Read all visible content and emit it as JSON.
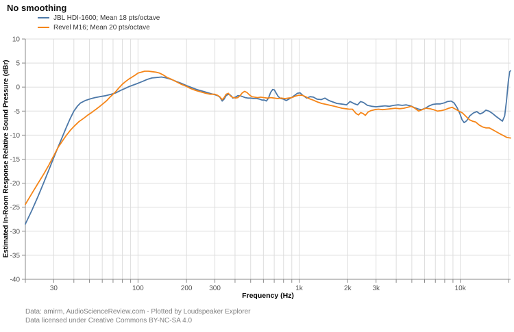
{
  "footer": {
    "line1": "Data: amirm, AudioScienceReview.com - Plotted by Loudspeaker Explorer",
    "line2": "Data licensed under Creative Commons BY-NC-SA 4.0"
  },
  "chart_data": {
    "type": "line",
    "title": "No smoothing",
    "xlabel": "Frequency (Hz)",
    "ylabel": "Estimated In-Room Response Relative Sound Pressure (dBr)",
    "x_scale": "log",
    "xlim": [
      20,
      20500
    ],
    "ylim": [
      -40,
      10
    ],
    "grid": true,
    "legend_position": "top-left",
    "grid_color": "#dddddd",
    "axis_color": "#888888",
    "tick_label_color": "#545454",
    "y_ticks": [
      10,
      5,
      0,
      -5,
      -10,
      -15,
      -20,
      -25,
      -30,
      -35,
      -40
    ],
    "x_gridlines": [
      20,
      30,
      40,
      50,
      60,
      70,
      80,
      90,
      100,
      200,
      300,
      400,
      500,
      600,
      700,
      800,
      900,
      1000,
      2000,
      3000,
      4000,
      5000,
      6000,
      7000,
      8000,
      9000,
      10000,
      20000
    ],
    "x_tick_labels": [
      {
        "value": 30,
        "label": "30"
      },
      {
        "value": 100,
        "label": "100"
      },
      {
        "value": 200,
        "label": "200"
      },
      {
        "value": 300,
        "label": "300"
      },
      {
        "value": 1000,
        "label": "1k"
      },
      {
        "value": 2000,
        "label": "2k"
      },
      {
        "value": 3000,
        "label": "3k"
      },
      {
        "value": 10000,
        "label": "10k"
      }
    ],
    "series": [
      {
        "name": "JBL HDI-1600; Mean 18 pts/octave",
        "color": "#4c78a8",
        "points": [
          [
            20,
            -28.5
          ],
          [
            22,
            -25.6
          ],
          [
            24,
            -22.7
          ],
          [
            26,
            -19.9
          ],
          [
            28,
            -17.2
          ],
          [
            30,
            -14.7
          ],
          [
            32,
            -12.4
          ],
          [
            34,
            -10.3
          ],
          [
            36,
            -8.3
          ],
          [
            38,
            -6.5
          ],
          [
            40,
            -5.0
          ],
          [
            42,
            -4.0
          ],
          [
            44,
            -3.3
          ],
          [
            47,
            -2.8
          ],
          [
            50,
            -2.5
          ],
          [
            54,
            -2.2
          ],
          [
            58,
            -2.0
          ],
          [
            63,
            -1.8
          ],
          [
            68,
            -1.5
          ],
          [
            73,
            -1.2
          ],
          [
            78,
            -0.7
          ],
          [
            83,
            -0.3
          ],
          [
            88,
            0.1
          ],
          [
            93,
            0.4
          ],
          [
            100,
            0.8
          ],
          [
            107,
            1.2
          ],
          [
            114,
            1.6
          ],
          [
            122,
            1.9
          ],
          [
            131,
            2.0
          ],
          [
            140,
            2.1
          ],
          [
            150,
            1.9
          ],
          [
            161,
            1.6
          ],
          [
            172,
            1.2
          ],
          [
            185,
            0.8
          ],
          [
            200,
            0.3
          ],
          [
            215,
            -0.1
          ],
          [
            231,
            -0.5
          ],
          [
            248,
            -0.8
          ],
          [
            266,
            -1.1
          ],
          [
            285,
            -1.4
          ],
          [
            300,
            -1.6
          ],
          [
            312,
            -1.8
          ],
          [
            322,
            -2.1
          ],
          [
            333,
            -2.9
          ],
          [
            342,
            -2.5
          ],
          [
            352,
            -1.8
          ],
          [
            363,
            -1.5
          ],
          [
            375,
            -1.7
          ],
          [
            388,
            -2.3
          ],
          [
            402,
            -2.1
          ],
          [
            416,
            -1.8
          ],
          [
            430,
            -1.8
          ],
          [
            446,
            -2.0
          ],
          [
            463,
            -2.2
          ],
          [
            481,
            -2.3
          ],
          [
            500,
            -2.3
          ],
          [
            522,
            -2.4
          ],
          [
            545,
            -2.4
          ],
          [
            567,
            -2.5
          ],
          [
            588,
            -2.7
          ],
          [
            608,
            -2.7
          ],
          [
            626,
            -2.9
          ],
          [
            645,
            -2.3
          ],
          [
            665,
            -1.1
          ],
          [
            685,
            -0.5
          ],
          [
            702,
            -0.6
          ],
          [
            718,
            -1.2
          ],
          [
            742,
            -2.0
          ],
          [
            770,
            -2.4
          ],
          [
            800,
            -2.5
          ],
          [
            832,
            -2.8
          ],
          [
            862,
            -2.5
          ],
          [
            905,
            -2.1
          ],
          [
            940,
            -1.7
          ],
          [
            975,
            -1.3
          ],
          [
            1012,
            -1.2
          ],
          [
            1060,
            -1.8
          ],
          [
            1115,
            -2.3
          ],
          [
            1170,
            -2.0
          ],
          [
            1225,
            -2.1
          ],
          [
            1290,
            -2.5
          ],
          [
            1370,
            -2.6
          ],
          [
            1445,
            -2.3
          ],
          [
            1530,
            -2.8
          ],
          [
            1620,
            -3.1
          ],
          [
            1715,
            -3.4
          ],
          [
            1810,
            -3.5
          ],
          [
            1900,
            -3.6
          ],
          [
            1965,
            -3.7
          ],
          [
            2070,
            -3.0
          ],
          [
            2180,
            -3.4
          ],
          [
            2300,
            -3.7
          ],
          [
            2405,
            -3.0
          ],
          [
            2505,
            -3.2
          ],
          [
            2650,
            -3.8
          ],
          [
            2820,
            -4.0
          ],
          [
            3000,
            -4.1
          ],
          [
            3200,
            -4.0
          ],
          [
            3410,
            -3.9
          ],
          [
            3630,
            -4.0
          ],
          [
            3860,
            -3.8
          ],
          [
            4110,
            -3.7
          ],
          [
            4360,
            -3.8
          ],
          [
            4620,
            -3.7
          ],
          [
            4910,
            -3.9
          ],
          [
            5210,
            -4.3
          ],
          [
            5520,
            -4.6
          ],
          [
            5760,
            -4.7
          ],
          [
            6060,
            -4.4
          ],
          [
            6410,
            -3.9
          ],
          [
            6760,
            -3.6
          ],
          [
            7120,
            -3.5
          ],
          [
            7510,
            -3.5
          ],
          [
            7920,
            -3.3
          ],
          [
            8330,
            -3.0
          ],
          [
            8760,
            -2.9
          ],
          [
            9150,
            -3.3
          ],
          [
            9550,
            -4.3
          ],
          [
            9950,
            -5.6
          ],
          [
            10250,
            -6.8
          ],
          [
            10550,
            -7.4
          ],
          [
            10950,
            -7.0
          ],
          [
            11450,
            -6.0
          ],
          [
            12050,
            -5.4
          ],
          [
            12650,
            -5.1
          ],
          [
            13250,
            -5.6
          ],
          [
            13850,
            -5.3
          ],
          [
            14400,
            -4.8
          ],
          [
            15050,
            -5.0
          ],
          [
            15850,
            -5.5
          ],
          [
            16650,
            -6.1
          ],
          [
            17450,
            -6.6
          ],
          [
            18250,
            -7.1
          ],
          [
            18850,
            -6.0
          ],
          [
            19350,
            -2.8
          ],
          [
            19850,
            1.2
          ],
          [
            20250,
            3.2
          ],
          [
            20500,
            3.4
          ]
        ]
      },
      {
        "name": "Revel M16; Mean 20 pts/octave",
        "color": "#f58518",
        "points": [
          [
            20,
            -24.4
          ],
          [
            22,
            -22.1
          ],
          [
            24,
            -20.0
          ],
          [
            26,
            -18.1
          ],
          [
            28,
            -16.2
          ],
          [
            30,
            -14.3
          ],
          [
            32,
            -12.5
          ],
          [
            34,
            -11.2
          ],
          [
            36,
            -10.0
          ],
          [
            38,
            -9.0
          ],
          [
            40,
            -8.2
          ],
          [
            43,
            -7.2
          ],
          [
            46,
            -6.5
          ],
          [
            49,
            -5.8
          ],
          [
            52,
            -5.2
          ],
          [
            55,
            -4.6
          ],
          [
            58,
            -4.0
          ],
          [
            61,
            -3.4
          ],
          [
            64,
            -2.8
          ],
          [
            67,
            -2.1
          ],
          [
            70,
            -1.5
          ],
          [
            73,
            -0.9
          ],
          [
            76,
            -0.2
          ],
          [
            80,
            0.6
          ],
          [
            84,
            1.2
          ],
          [
            88,
            1.7
          ],
          [
            92,
            2.1
          ],
          [
            96,
            2.5
          ],
          [
            100,
            2.9
          ],
          [
            105,
            3.1
          ],
          [
            110,
            3.3
          ],
          [
            116,
            3.3
          ],
          [
            122,
            3.2
          ],
          [
            129,
            3.1
          ],
          [
            136,
            2.9
          ],
          [
            144,
            2.5
          ],
          [
            152,
            2.0
          ],
          [
            162,
            1.6
          ],
          [
            173,
            1.1
          ],
          [
            185,
            0.6
          ],
          [
            198,
            0.2
          ],
          [
            212,
            -0.3
          ],
          [
            228,
            -0.7
          ],
          [
            245,
            -1.0
          ],
          [
            263,
            -1.3
          ],
          [
            281,
            -1.5
          ],
          [
            300,
            -1.5
          ],
          [
            311,
            -1.7
          ],
          [
            321,
            -2.0
          ],
          [
            333,
            -2.6
          ],
          [
            342,
            -2.2
          ],
          [
            352,
            -1.5
          ],
          [
            364,
            -1.3
          ],
          [
            376,
            -1.9
          ],
          [
            390,
            -2.2
          ],
          [
            403,
            -2.3
          ],
          [
            416,
            -2.2
          ],
          [
            430,
            -1.8
          ],
          [
            444,
            -1.2
          ],
          [
            458,
            -0.9
          ],
          [
            473,
            -1.1
          ],
          [
            490,
            -1.6
          ],
          [
            508,
            -2.0
          ],
          [
            528,
            -2.1
          ],
          [
            552,
            -2.2
          ],
          [
            578,
            -2.1
          ],
          [
            605,
            -2.2
          ],
          [
            635,
            -2.3
          ],
          [
            668,
            -2.2
          ],
          [
            702,
            -2.3
          ],
          [
            737,
            -2.4
          ],
          [
            775,
            -2.3
          ],
          [
            815,
            -2.4
          ],
          [
            857,
            -2.3
          ],
          [
            900,
            -2.2
          ],
          [
            945,
            -1.9
          ],
          [
            992,
            -1.7
          ],
          [
            1042,
            -1.7
          ],
          [
            1095,
            -2.0
          ],
          [
            1150,
            -2.4
          ],
          [
            1220,
            -2.7
          ],
          [
            1300,
            -3.1
          ],
          [
            1380,
            -3.4
          ],
          [
            1470,
            -3.6
          ],
          [
            1560,
            -3.8
          ],
          [
            1655,
            -4.0
          ],
          [
            1750,
            -4.2
          ],
          [
            1845,
            -4.4
          ],
          [
            1940,
            -4.5
          ],
          [
            2040,
            -4.6
          ],
          [
            2140,
            -4.6
          ],
          [
            2255,
            -5.5
          ],
          [
            2335,
            -5.8
          ],
          [
            2410,
            -5.3
          ],
          [
            2490,
            -5.5
          ],
          [
            2575,
            -5.9
          ],
          [
            2675,
            -5.2
          ],
          [
            2790,
            -4.9
          ],
          [
            2940,
            -4.7
          ],
          [
            3100,
            -4.6
          ],
          [
            3300,
            -4.7
          ],
          [
            3510,
            -4.6
          ],
          [
            3720,
            -4.5
          ],
          [
            3960,
            -4.4
          ],
          [
            4210,
            -4.5
          ],
          [
            4460,
            -4.4
          ],
          [
            4710,
            -4.2
          ],
          [
            4960,
            -4.0
          ],
          [
            5220,
            -4.4
          ],
          [
            5510,
            -5.0
          ],
          [
            5810,
            -4.7
          ],
          [
            6120,
            -4.4
          ],
          [
            6460,
            -4.5
          ],
          [
            6820,
            -4.7
          ],
          [
            7210,
            -5.0
          ],
          [
            7620,
            -4.9
          ],
          [
            8040,
            -4.7
          ],
          [
            8480,
            -4.4
          ],
          [
            8890,
            -4.2
          ],
          [
            9330,
            -4.6
          ],
          [
            9810,
            -5.0
          ],
          [
            10320,
            -5.4
          ],
          [
            10840,
            -6.1
          ],
          [
            11380,
            -6.8
          ],
          [
            11900,
            -7.1
          ],
          [
            12480,
            -7.3
          ],
          [
            13100,
            -7.9
          ],
          [
            13760,
            -8.3
          ],
          [
            14450,
            -8.5
          ],
          [
            15150,
            -8.5
          ],
          [
            15920,
            -8.9
          ],
          [
            16720,
            -9.3
          ],
          [
            17570,
            -9.7
          ],
          [
            18490,
            -10.1
          ],
          [
            19500,
            -10.5
          ],
          [
            20500,
            -10.6
          ]
        ]
      }
    ]
  }
}
